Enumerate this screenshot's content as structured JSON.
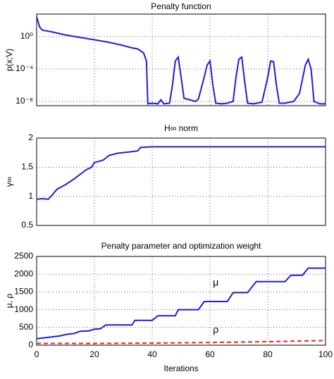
{
  "chart_data": [
    {
      "type": "line",
      "title": "Penalty function",
      "ylabel": "p(x;V)",
      "log_y": true,
      "grid": true,
      "xtick_labels": false,
      "color": "#1f1fd6",
      "x": [
        0,
        1,
        2,
        5,
        10,
        15,
        20,
        25,
        30,
        33,
        35,
        37,
        38,
        38.5,
        40,
        42,
        43,
        44,
        46,
        47,
        48,
        49,
        50,
        51,
        53,
        55,
        56,
        58,
        59,
        60,
        61,
        62,
        64,
        66,
        68,
        69,
        70,
        71,
        72,
        73,
        75,
        78,
        80,
        81,
        82,
        83,
        84,
        86,
        89,
        91,
        93,
        94,
        95,
        96,
        98,
        100
      ],
      "values": [
        300,
        16,
        6.3,
        4,
        1.6,
        0.8,
        0.4,
        0.2,
        0.08,
        0.04,
        0.03,
        0.01,
        0.001,
        5e-09,
        6e-09,
        5e-09,
        1.6e-08,
        5e-09,
        6e-09,
        1e-06,
        0.001,
        0.003,
        1e-05,
        2.5e-08,
        1.6e-08,
        1e-08,
        2e-08,
        1e-05,
        0.0003,
        0.001,
        1e-06,
        6e-09,
        5e-09,
        6e-09,
        1e-08,
        1e-05,
        0.0016,
        0.003,
        3e-06,
        6e-09,
        5e-09,
        8e-09,
        1e-05,
        0.001,
        0.0008,
        1e-06,
        6e-09,
        6e-09,
        1e-08,
        1e-07,
        0.0003,
        0.0016,
        0.0001,
        1e-08,
        5e-09,
        5e-09
      ],
      "xlim": [
        0,
        100
      ],
      "xticks": [
        0,
        20,
        40,
        60,
        80,
        100
      ],
      "ylim": [
        3e-09,
        600
      ],
      "yticks": [
        {
          "value": 1,
          "label": "10⁰"
        },
        {
          "value": 0.0001,
          "label": "10⁻⁴"
        },
        {
          "value": 1e-08,
          "label": "10⁻⁸"
        }
      ]
    },
    {
      "type": "line",
      "title": "H∞ norm",
      "ylabel": "γ∞",
      "grid": true,
      "xtick_labels": false,
      "color": "#1f1fd6",
      "x": [
        0,
        2,
        4,
        5,
        7,
        10,
        13,
        17,
        19,
        20,
        23,
        25,
        28,
        32,
        35,
        36,
        40,
        100
      ],
      "values": [
        0.95,
        0.96,
        0.95,
        1.0,
        1.12,
        1.2,
        1.3,
        1.45,
        1.5,
        1.58,
        1.62,
        1.7,
        1.74,
        1.76,
        1.78,
        1.84,
        1.85,
        1.85
      ],
      "xlim": [
        0,
        100
      ],
      "xticks": [
        0,
        20,
        40,
        60,
        80,
        100
      ],
      "ylim": [
        0.5,
        2
      ],
      "yticks": [
        0.5,
        1,
        1.5,
        2
      ]
    },
    {
      "type": "line",
      "title": "Penalty parameter and optimization weight",
      "ylabel": "μ, ρ",
      "xlabel": "Iterations",
      "grid": true,
      "xtick_labels": true,
      "series": [
        {
          "name": "μ",
          "color": "#1f1fd6",
          "dash": false,
          "x": [
            0,
            2,
            5,
            8,
            10,
            13,
            15,
            18,
            20,
            22,
            24,
            33,
            34,
            40,
            42,
            48,
            49,
            56,
            58,
            66,
            68,
            73,
            76,
            86,
            88,
            92,
            94,
            100
          ],
          "values": [
            180,
            200,
            230,
            260,
            300,
            330,
            390,
            400,
            450,
            460,
            570,
            570,
            700,
            700,
            830,
            830,
            1000,
            1000,
            1230,
            1230,
            1480,
            1480,
            1790,
            1790,
            1970,
            1970,
            2170,
            2170
          ]
        },
        {
          "name": "ρ",
          "color": "#e8261e",
          "dash": true,
          "x": [
            0,
            20,
            40,
            60,
            80,
            100
          ],
          "values": [
            50,
            50,
            60,
            75,
            100,
            130
          ]
        }
      ],
      "xlim": [
        0,
        100
      ],
      "xticks": [
        0,
        20,
        40,
        60,
        80,
        100
      ],
      "ylim": [
        0,
        2500
      ],
      "yticks": [
        0,
        500,
        1000,
        1500,
        2000,
        2500
      ]
    }
  ]
}
